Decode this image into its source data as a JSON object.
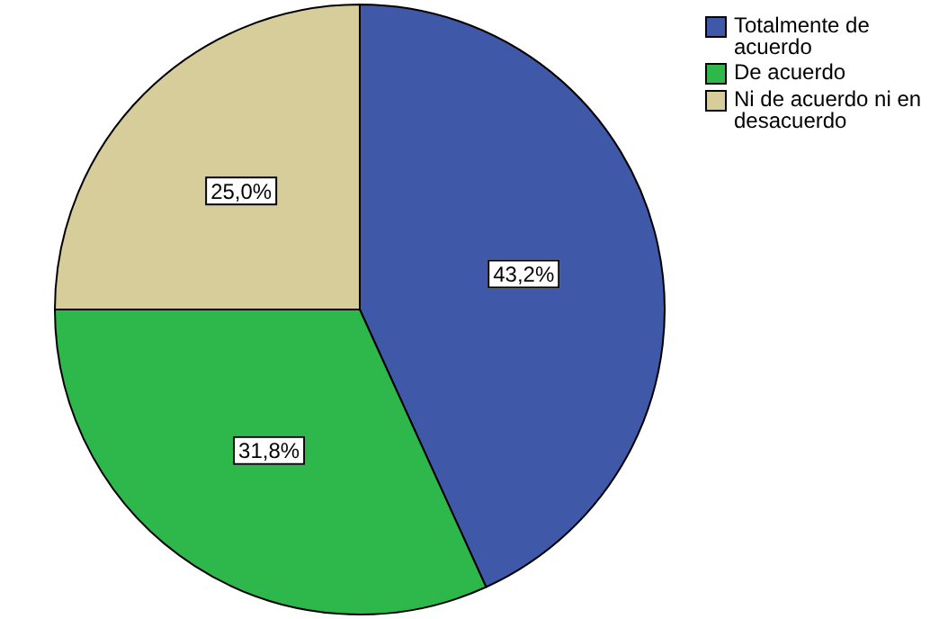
{
  "chart_data": {
    "type": "pie",
    "categories": [
      "Totalmente de acuerdo",
      "De acuerdo",
      "Ni de acuerdo ni en desacuerdo"
    ],
    "values": [
      43.2,
      31.8,
      25.0
    ],
    "colors": [
      "#3f58a8",
      "#2eb84b",
      "#d6cd9a"
    ],
    "value_labels": [
      "43,2%",
      "31,8%",
      "25,0%"
    ],
    "legend": "top right"
  }
}
